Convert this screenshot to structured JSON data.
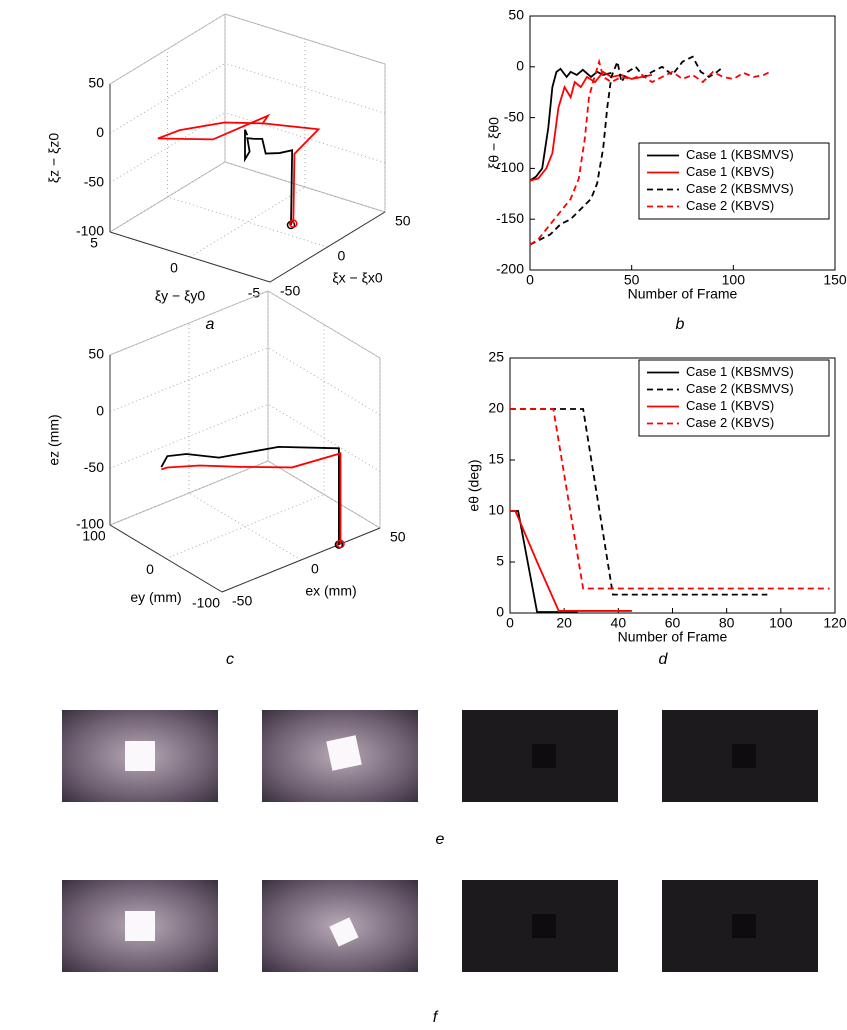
{
  "chart_data": [
    {
      "type": "line3d",
      "panel_label": "a",
      "xlabel": "ξx − ξx0",
      "ylabel": "ξy − ξy0",
      "zlabel": "ξz − ξz0",
      "xlim": [
        -50,
        50
      ],
      "ylim": [
        -5,
        5
      ],
      "zlim": [
        -100,
        50
      ],
      "xticks": [
        -50,
        0,
        50
      ],
      "yticks": [
        -5,
        0,
        5
      ],
      "zticks": [
        -100,
        -50,
        0,
        50
      ],
      "grid": true,
      "series": [
        {
          "color": "#000000",
          "x": [
            10,
            11,
            0,
            -12,
            -15,
            -22,
            -28,
            -26,
            -30,
            -30,
            -28
          ],
          "y": [
            -2,
            -2,
            -2,
            -2,
            -2,
            -2,
            -2,
            -2,
            -2,
            -2,
            -2
          ],
          "z": [
            -100,
            -25,
            -20,
            -12,
            5,
            10,
            15,
            0,
            -5,
            25,
            18
          ]
        },
        {
          "color": "#ff0000",
          "x": [
            12,
            13,
            20,
            0,
            -20,
            -45,
            -50,
            -30,
            -10,
            -15
          ],
          "y": [
            -2,
            -2,
            -3,
            -1,
            0,
            1,
            2,
            0,
            -2,
            -2
          ],
          "z": [
            -100,
            -30,
            -5,
            5,
            15,
            20,
            10,
            5,
            25,
            20
          ]
        }
      ]
    },
    {
      "type": "line",
      "panel_label": "b",
      "xlabel": "Number of Frame",
      "ylabel": "ξθ − ξθ0",
      "xlim": [
        0,
        150
      ],
      "ylim": [
        -200,
        50
      ],
      "xticks": [
        0,
        50,
        100,
        150
      ],
      "yticks": [
        -200,
        -150,
        -100,
        -50,
        0,
        50
      ],
      "grid": false,
      "legend": "right",
      "series": [
        {
          "name": "Case 1 (KBSMVS)",
          "color": "#000000",
          "linestyle": "solid",
          "x": [
            0,
            3,
            6,
            9,
            11,
            13,
            15,
            18,
            20,
            23,
            26,
            30,
            33,
            36,
            40
          ],
          "values": [
            -112,
            -108,
            -100,
            -60,
            -20,
            -5,
            -2,
            -10,
            -5,
            -8,
            -3,
            -10,
            -5,
            -8,
            -6
          ]
        },
        {
          "name": "Case 1 (KBVS)",
          "color": "#ff0000",
          "linestyle": "solid",
          "x": [
            0,
            4,
            8,
            11,
            14,
            17,
            20,
            22,
            25,
            28,
            32,
            36,
            40,
            45,
            50,
            55,
            60
          ],
          "values": [
            -112,
            -110,
            -100,
            -85,
            -40,
            -20,
            -30,
            -15,
            -20,
            -10,
            -15,
            -5,
            -10,
            -8,
            -12,
            -10,
            -8
          ]
        },
        {
          "name": "Case 2 (KBSMVS)",
          "color": "#000000",
          "linestyle": "dashed",
          "x": [
            0,
            5,
            10,
            15,
            20,
            25,
            30,
            33,
            36,
            38,
            40,
            43,
            45,
            48,
            52,
            56,
            60,
            65,
            70,
            75,
            80,
            84,
            88,
            92,
            95
          ],
          "values": [
            -175,
            -170,
            -165,
            -155,
            -150,
            -140,
            -130,
            -115,
            -80,
            -40,
            -10,
            5,
            -15,
            -5,
            0,
            -10,
            -5,
            0,
            -8,
            5,
            10,
            -5,
            -10,
            -5,
            0
          ]
        },
        {
          "name": "Case 2 (KBVS)",
          "color": "#ff0000",
          "linestyle": "dashed",
          "x": [
            0,
            4,
            8,
            12,
            16,
            20,
            24,
            27,
            29,
            31,
            34,
            36,
            40,
            45,
            50,
            55,
            60,
            65,
            70,
            75,
            80,
            85,
            90,
            95,
            100,
            105,
            110,
            115,
            118
          ],
          "values": [
            -175,
            -170,
            -160,
            -150,
            -140,
            -130,
            -110,
            -70,
            -30,
            -15,
            5,
            -10,
            -15,
            -10,
            -12,
            -8,
            -15,
            -10,
            -5,
            -12,
            -8,
            -15,
            -5,
            -10,
            -12,
            -6,
            -10,
            -8,
            -5
          ]
        }
      ]
    },
    {
      "type": "line3d",
      "panel_label": "c",
      "xlabel": "ex (mm)",
      "ylabel": "ey (mm)",
      "zlabel": "ez (mm)",
      "xlim": [
        -50,
        50
      ],
      "ylim": [
        -100,
        100
      ],
      "zlim": [
        -100,
        50
      ],
      "xticks": [
        -50,
        0,
        50
      ],
      "yticks": [
        -100,
        0,
        100
      ],
      "zticks": [
        -100,
        -50,
        0,
        50
      ],
      "grid": true,
      "series": [
        {
          "color": "#000000",
          "x": [
            24,
            24,
            0,
            -20,
            -30,
            -35,
            -37
          ],
          "y": [
            -100,
            -100,
            -60,
            -10,
            20,
            40,
            45
          ],
          "z": [
            -100,
            -15,
            -12,
            -25,
            -25,
            -30,
            -40
          ]
        },
        {
          "color": "#ff0000",
          "x": [
            25,
            25,
            5,
            -15,
            -25,
            -35,
            -37
          ],
          "y": [
            -100,
            -100,
            -70,
            -30,
            10,
            40,
            45
          ],
          "z": [
            -100,
            -20,
            -30,
            -30,
            -35,
            -40,
            -42
          ]
        }
      ]
    },
    {
      "type": "line",
      "panel_label": "d",
      "xlabel": "Number of Frame",
      "ylabel": "eθ (deg)",
      "xlim": [
        0,
        120
      ],
      "ylim": [
        0,
        25
      ],
      "xticks": [
        0,
        20,
        40,
        60,
        80,
        100,
        120
      ],
      "yticks": [
        0,
        5,
        10,
        15,
        20,
        25
      ],
      "grid": false,
      "legend": "upper right",
      "series": [
        {
          "name": "Case 1 (KBSMVS)",
          "color": "#000000",
          "linestyle": "solid",
          "x": [
            0,
            3,
            10,
            25
          ],
          "values": [
            10,
            10,
            0.1,
            0.1
          ]
        },
        {
          "name": "Case 2 (KBSMVS)",
          "color": "#000000",
          "linestyle": "dashed",
          "x": [
            0,
            27,
            38,
            95
          ],
          "values": [
            20,
            20,
            1.8,
            1.8
          ]
        },
        {
          "name": "Case 1 (KBVS)",
          "color": "#ff0000",
          "linestyle": "solid",
          "x": [
            0,
            2,
            10,
            18,
            45
          ],
          "values": [
            10,
            10,
            5,
            0.2,
            0.2
          ]
        },
        {
          "name": "Case 2 (KBVS)",
          "color": "#ff0000",
          "linestyle": "dashed",
          "x": [
            0,
            16,
            27,
            118
          ],
          "values": [
            20,
            20,
            2.4,
            2.4
          ]
        }
      ]
    }
  ],
  "image_rows": [
    {
      "label": "e"
    },
    {
      "label": "f"
    }
  ]
}
